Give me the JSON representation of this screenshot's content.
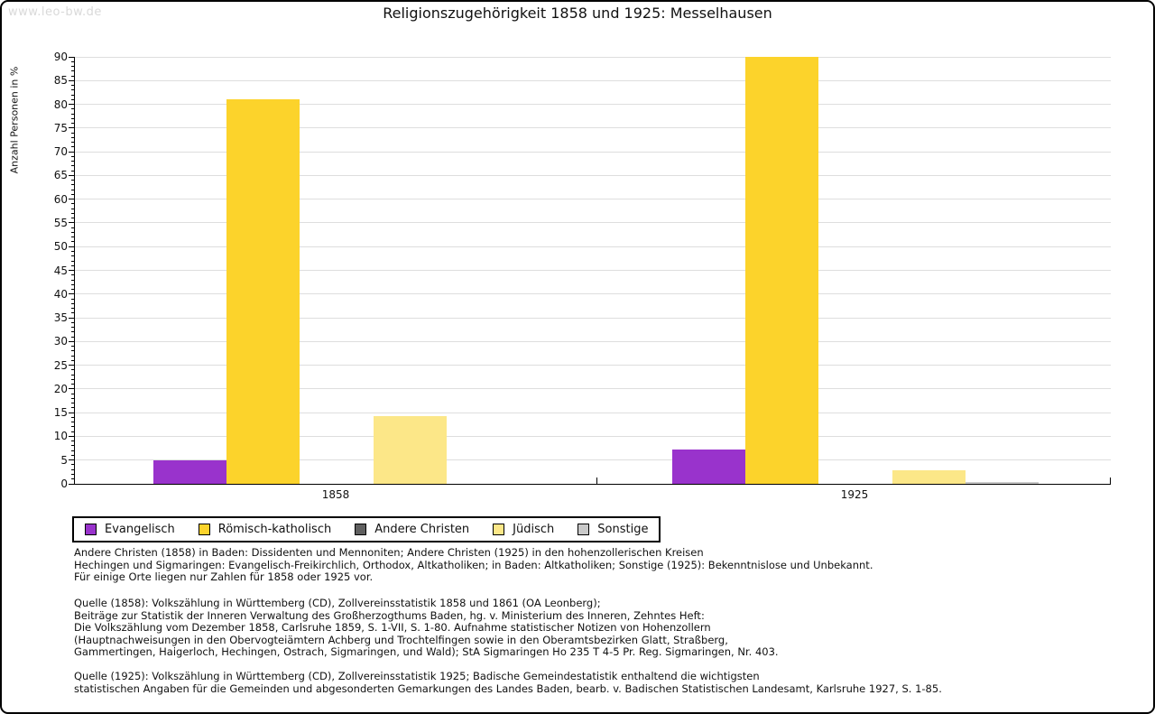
{
  "page": {
    "watermark": "www.leo-bw.de"
  },
  "chart_data": {
    "type": "bar",
    "title": "Religionszugehörigkeit 1858 und 1925: Messelhausen",
    "ylabel": "Anzahl Personen in %",
    "ylim": [
      0,
      90
    ],
    "ytick_step": 5,
    "minor_tick_step": 1,
    "grid": true,
    "legend_position": "bottom-left",
    "categories": [
      "1858",
      "1925"
    ],
    "series": [
      {
        "name": "Evangelisch",
        "color": "#9933CC",
        "values": [
          5.0,
          7.2
        ]
      },
      {
        "name": "Römisch-katholisch",
        "color": "#FCD32B",
        "values": [
          81.0,
          90.0
        ]
      },
      {
        "name": "Andere Christen",
        "color": "#606060",
        "values": [
          0,
          0
        ]
      },
      {
        "name": "Jüdisch",
        "color": "#FCE788",
        "values": [
          14.2,
          2.8
        ]
      },
      {
        "name": "Sonstige",
        "color": "#C9C9C9",
        "values": [
          0,
          0.3
        ]
      }
    ],
    "colors": {
      "gridline": "#dedede",
      "axis": "#000000"
    }
  },
  "footnotes": {
    "notes": "Andere Christen (1858) in Baden: Dissidenten und Mennoniten; Andere Christen (1925) in den hohenzollerischen Kreisen\nHechingen und Sigmaringen: Evangelisch-Freikirchlich, Orthodox, Altkatholiken; in Baden: Altkatholiken; Sonstige (1925): Bekenntnislose und Unbekannt.\nFür einige Orte liegen nur Zahlen für 1858 oder 1925 vor.",
    "source_1858": "Quelle (1858): Volkszählung in Württemberg (CD), Zollvereinsstatistik 1858 und 1861 (OA Leonberg);\nBeiträge zur Statistik der Inneren Verwaltung des Großherzogthums Baden, hg. v. Ministerium des Inneren, Zehntes Heft:\nDie Volkszählung vom Dezember 1858, Carlsruhe 1859, S. 1-VII, S. 1-80. Aufnahme statistischer Notizen von Hohenzollern\n(Hauptnachweisungen in den Obervogteiämtern Achberg und Trochtelfingen sowie in den Oberamtsbezirken Glatt, Straßberg,\nGammertingen, Haigerloch, Hechingen, Ostrach, Sigmaringen, und Wald); StA Sigmaringen Ho 235 T 4-5 Pr. Reg. Sigmaringen, Nr. 403.",
    "source_1925": "Quelle (1925): Volkszählung in Württemberg (CD), Zollvereinsstatistik 1925; Badische Gemeindestatistik enthaltend die wichtigsten\nstatistischen Angaben für die Gemeinden und abgesonderten Gemarkungen des Landes Baden, bearb. v. Badischen Statistischen Landesamt, Karlsruhe 1927, S. 1-85."
  }
}
